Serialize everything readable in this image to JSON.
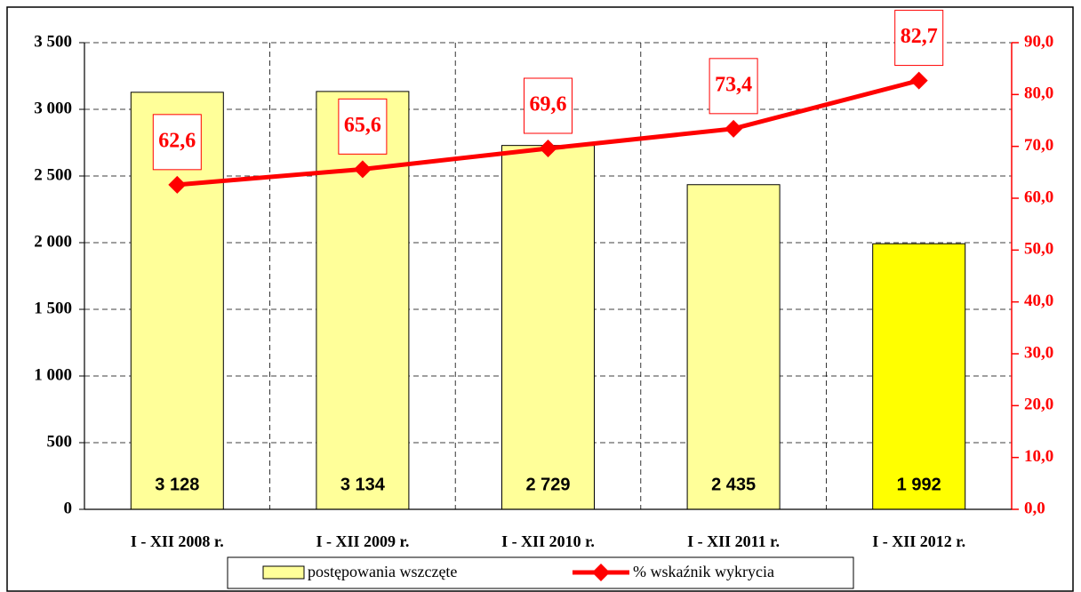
{
  "chart_data": {
    "type": "bar-line",
    "categories": [
      "I - XII 2008 r.",
      "I - XII 2009 r.",
      "I - XII 2010 r.",
      "I - XII 2011 r.",
      "I - XII 2012 r."
    ],
    "series": [
      {
        "name": "postępowania wszczęte",
        "type": "bar",
        "colors": [
          "#ffff99",
          "#ffff99",
          "#ffff99",
          "#ffff99",
          "#ffff00"
        ],
        "values": [
          3128,
          3134,
          2729,
          2435,
          1992
        ],
        "value_labels": [
          "3 128",
          "3 134",
          "2 729",
          "2 435",
          "1 992"
        ]
      },
      {
        "name": "% wskaźnik wykrycia",
        "type": "line",
        "axis": "y2",
        "color": "#ff0000",
        "values": [
          62.6,
          65.6,
          69.6,
          73.4,
          82.7
        ],
        "value_labels": [
          "62,6",
          "65,6",
          "69,6",
          "73,4",
          "82,7"
        ]
      }
    ],
    "ylim": [
      0,
      3500
    ],
    "yticks": [
      0,
      {
        "value": 500,
        "label": "500"
      },
      {
        "value": 1000,
        "label": "1 000"
      },
      {
        "value": 1500,
        "label": "1 500"
      },
      {
        "value": 2000,
        "label": "2 000"
      },
      {
        "value": 2500,
        "label": "2 500"
      },
      {
        "value": 3000,
        "label": "3 000"
      },
      {
        "value": 3500,
        "label": "3 500"
      }
    ],
    "y2lim": [
      0,
      90
    ],
    "y2ticks": [
      {
        "value": 0,
        "label": "0,0"
      },
      {
        "value": 10,
        "label": "10,0"
      },
      {
        "value": 20,
        "label": "20,0"
      },
      {
        "value": 30,
        "label": "30,0"
      },
      {
        "value": 40,
        "label": "40,0"
      },
      {
        "value": 50,
        "label": "50,0"
      },
      {
        "value": 60,
        "label": "60,0"
      },
      {
        "value": 70,
        "label": "70,0"
      },
      {
        "value": 80,
        "label": "80,0"
      },
      {
        "value": 90,
        "label": "90,0"
      }
    ],
    "grid": true,
    "legend": "bottom"
  }
}
